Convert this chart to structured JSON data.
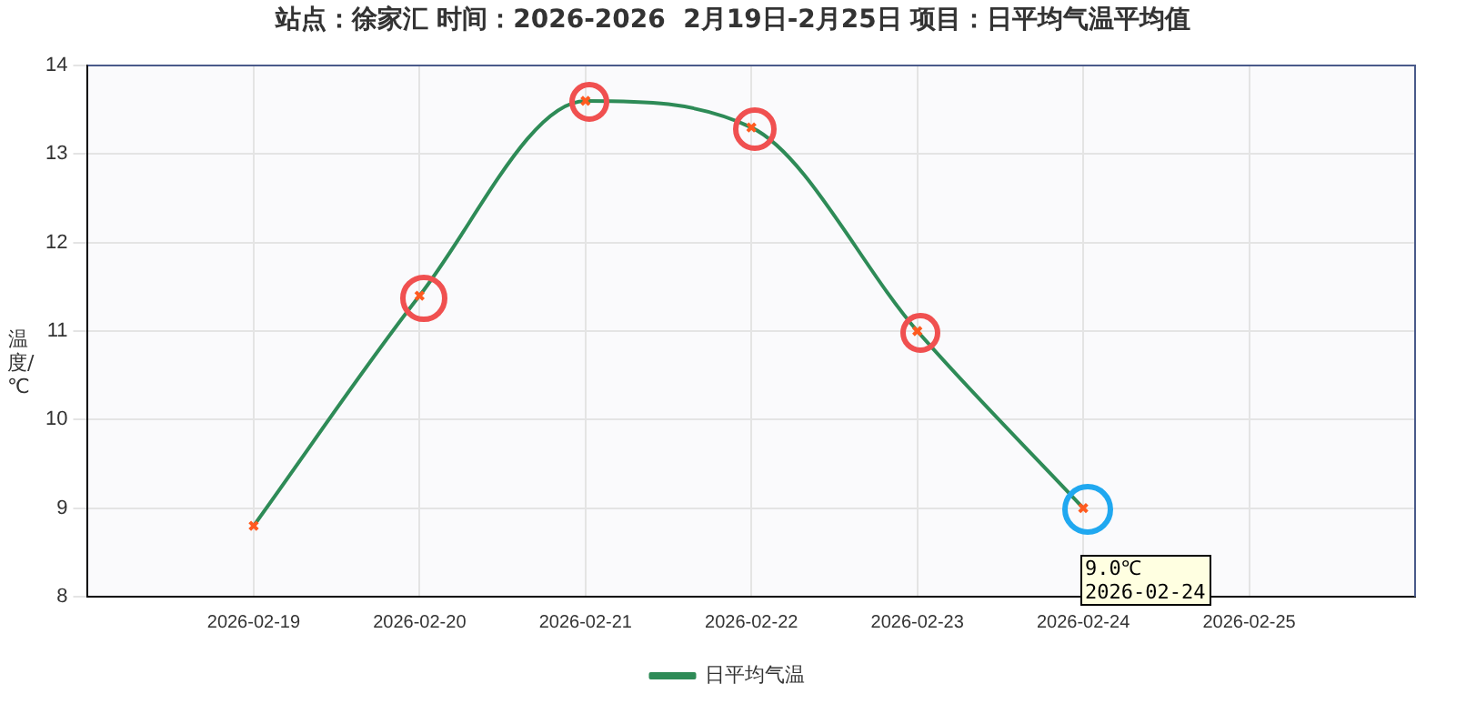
{
  "chart_data": {
    "type": "line",
    "title": "站点：徐家汇 时间：2026-2026  2月19日-2月25日 项目：日平均气温平均值",
    "ylabel": "温度/℃",
    "categories": [
      null,
      "2026-02-19",
      "2026-02-20",
      "2026-02-21",
      "2026-02-22",
      "2026-02-23",
      "2026-02-24",
      "2026-02-25",
      null
    ],
    "series": [
      {
        "name": "日平均气温",
        "color": "#2e8b57",
        "values": [
          null,
          8.8,
          11.4,
          13.6,
          13.3,
          11.0,
          9.0,
          null,
          null
        ]
      }
    ],
    "ylim": [
      8,
      14
    ],
    "yticks": [
      8,
      9,
      10,
      11,
      12,
      13,
      14
    ],
    "grid": true,
    "legend": "bottom",
    "marker": "cross",
    "line_style": "solid",
    "annotations": [
      {
        "text": "9.0℃\n2026-02-24",
        "x": "2026-02-24",
        "y": 9.0
      }
    ]
  }
}
